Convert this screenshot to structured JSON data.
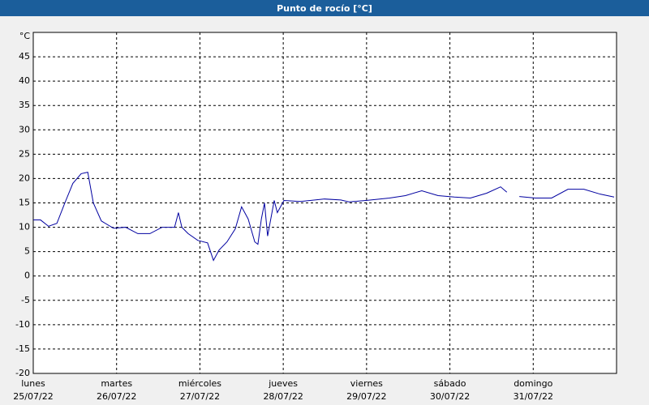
{
  "chart_data": {
    "type": "line",
    "title": "Punto de rocío [°C]",
    "unit": "°C",
    "xlim": [
      0,
      168
    ],
    "xticks": [
      {
        "value": 0,
        "label": "lunes",
        "date": "25/07/22"
      },
      {
        "value": 24,
        "label": "martes",
        "date": "26/07/22"
      },
      {
        "value": 48,
        "label": "miércoles",
        "date": "27/07/22"
      },
      {
        "value": 72,
        "label": "jueves",
        "date": "28/07/22"
      },
      {
        "value": 96,
        "label": "viernes",
        "date": "29/07/22"
      },
      {
        "value": 120,
        "label": "sábado",
        "date": "30/07/22"
      },
      {
        "value": 144,
        "label": "domingo",
        "date": "31/07/22"
      }
    ],
    "ylim": [
      -20,
      50
    ],
    "yticks": [
      -20,
      -15,
      -10,
      -5,
      0,
      5,
      10,
      15,
      20,
      25,
      30,
      35,
      40,
      45
    ],
    "grid": true,
    "x": [
      0,
      2.1,
      4.4,
      6.8,
      9.1,
      11.4,
      13.8,
      15.7,
      17.3,
      19.6,
      23.1,
      26.6,
      30.1,
      33.6,
      37.1,
      40.7,
      41.8,
      42.8,
      44.6,
      47.4,
      50.2,
      51.9,
      53.5,
      55.8,
      58.2,
      60,
      61.9,
      63.8,
      64.7,
      65.7,
      66.6,
      67.5,
      69.4,
      70.3,
      72.2,
      76.9,
      83.9,
      88.6,
      90.9,
      95.8,
      102.6,
      107.2,
      111.9,
      116.6,
      121.3,
      125.9,
      130.6,
      134.6,
      136.4,
      137.5,
      140,
      144.6,
      149.3,
      154,
      158.6,
      163.3,
      167.3
    ],
    "series": [
      {
        "color": "#0000a0",
        "values": [
          11.5,
          11.5,
          10.2,
          10.8,
          15,
          19,
          21,
          21.3,
          15,
          11.3,
          9.8,
          10,
          8.7,
          8.7,
          10,
          10,
          13,
          10,
          8.7,
          7.3,
          6.8,
          3.2,
          5.3,
          7,
          9.7,
          14.2,
          11.7,
          7,
          6.5,
          11.7,
          15,
          8.2,
          15.5,
          13,
          15.5,
          15.3,
          15.8,
          15.6,
          15.2,
          15.5,
          16,
          16.5,
          17.5,
          16.5,
          16.2,
          16,
          17,
          18.3,
          17.2,
          null,
          16.3,
          16,
          16,
          17.8,
          17.8,
          16.8,
          16.2
        ]
      }
    ]
  }
}
